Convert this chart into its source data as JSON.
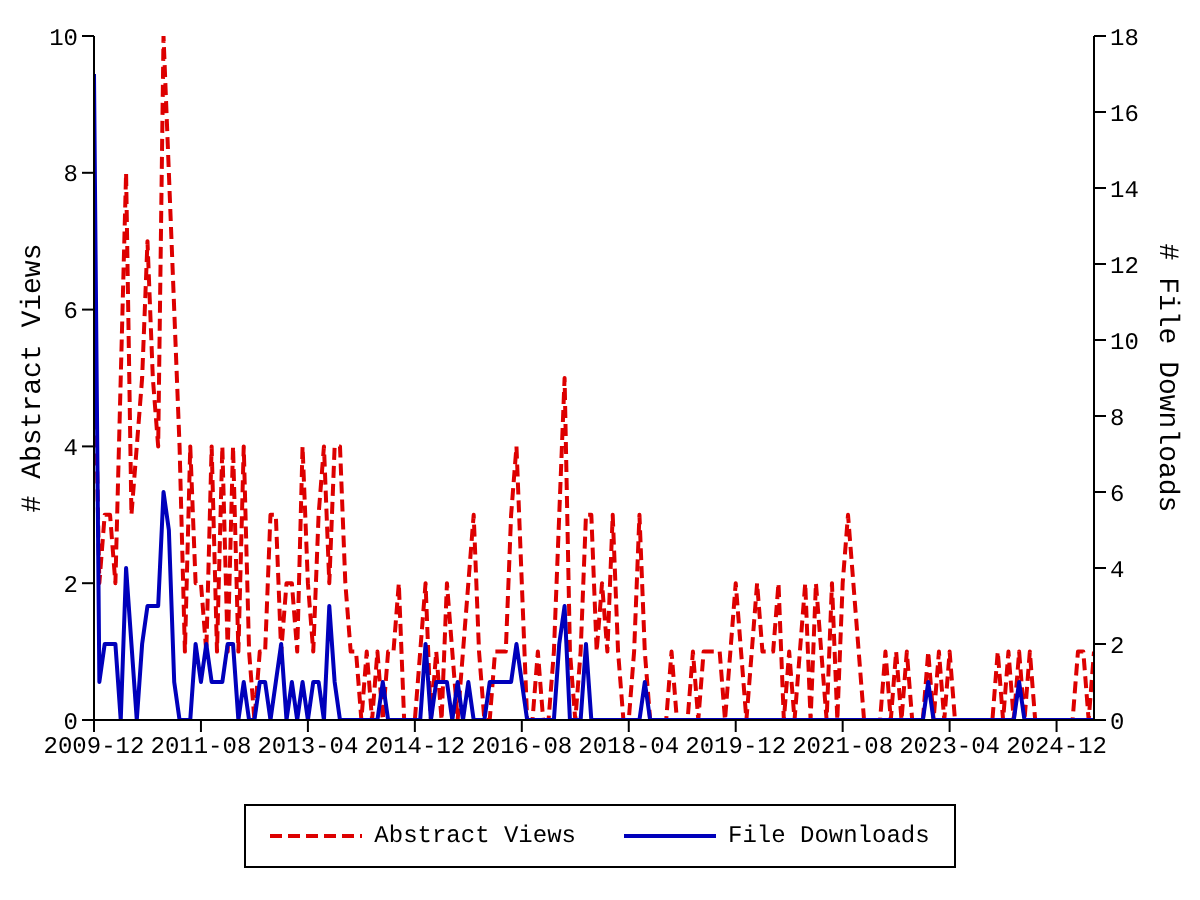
{
  "chart_data": {
    "type": "line",
    "ylabel": "# Abstract Views",
    "y2label": "# File Downloads",
    "x": [
      "2009-12",
      "2010-01",
      "2010-02",
      "2010-03",
      "2010-04",
      "2010-05",
      "2010-06",
      "2010-07",
      "2010-08",
      "2010-09",
      "2010-10",
      "2010-11",
      "2010-12",
      "2011-01",
      "2011-02",
      "2011-03",
      "2011-04",
      "2011-05",
      "2011-06",
      "2011-07",
      "2011-08",
      "2011-09",
      "2011-10",
      "2011-11",
      "2011-12",
      "2012-01",
      "2012-02",
      "2012-03",
      "2012-04",
      "2012-05",
      "2012-06",
      "2012-07",
      "2012-08",
      "2012-09",
      "2012-10",
      "2012-11",
      "2012-12",
      "2013-01",
      "2013-02",
      "2013-03",
      "2013-04",
      "2013-05",
      "2013-06",
      "2013-07",
      "2013-08",
      "2013-09",
      "2013-10",
      "2013-11",
      "2013-12",
      "2014-01",
      "2014-02",
      "2014-03",
      "2014-04",
      "2014-05",
      "2014-06",
      "2014-07",
      "2014-08",
      "2014-09",
      "2014-10",
      "2014-11",
      "2014-12",
      "2015-01",
      "2015-02",
      "2015-03",
      "2015-04",
      "2015-05",
      "2015-06",
      "2015-07",
      "2015-08",
      "2015-09",
      "2015-10",
      "2015-11",
      "2015-12",
      "2016-01",
      "2016-02",
      "2016-03",
      "2016-04",
      "2016-05",
      "2016-06",
      "2016-07",
      "2016-08",
      "2016-09",
      "2016-10",
      "2016-11",
      "2016-12",
      "2017-01",
      "2017-02",
      "2017-03",
      "2017-04",
      "2017-05",
      "2017-06",
      "2017-07",
      "2017-08",
      "2017-09",
      "2017-10",
      "2017-11",
      "2017-12",
      "2018-01",
      "2018-02",
      "2018-03",
      "2018-04",
      "2018-05",
      "2018-06",
      "2018-07",
      "2018-08",
      "2018-09",
      "2018-10",
      "2018-11",
      "2018-12",
      "2019-01",
      "2019-02",
      "2019-03",
      "2019-04",
      "2019-05",
      "2019-06",
      "2019-07",
      "2019-08",
      "2019-09",
      "2019-10",
      "2019-11",
      "2019-12",
      "2020-01",
      "2020-02",
      "2020-03",
      "2020-04",
      "2020-05",
      "2020-06",
      "2020-07",
      "2020-08",
      "2020-09",
      "2020-10",
      "2020-11",
      "2020-12",
      "2021-01",
      "2021-02",
      "2021-03",
      "2021-04",
      "2021-05",
      "2021-06",
      "2021-07",
      "2021-08",
      "2021-09",
      "2021-10",
      "2021-11",
      "2021-12",
      "2022-01",
      "2022-02",
      "2022-03",
      "2022-04",
      "2022-05",
      "2022-06",
      "2022-07",
      "2022-08",
      "2022-09",
      "2022-10",
      "2022-11",
      "2022-12",
      "2023-01",
      "2023-02",
      "2023-03",
      "2023-04",
      "2023-05",
      "2023-06",
      "2023-07",
      "2023-08",
      "2023-09",
      "2023-10",
      "2023-11",
      "2023-12",
      "2024-01",
      "2024-02",
      "2024-03",
      "2024-04",
      "2024-05",
      "2024-06",
      "2024-07",
      "2024-08",
      "2024-09",
      "2024-10",
      "2024-11",
      "2024-12",
      "2025-01",
      "2025-02",
      "2025-03",
      "2025-04",
      "2025-05",
      "2025-06",
      "2025-07"
    ],
    "series": [
      {
        "name": "Abstract Views",
        "color": "#dd0000",
        "line_style": "dashed",
        "values": [
          6,
          2,
          3,
          3,
          2,
          5,
          8,
          3,
          4,
          5,
          7,
          5,
          4,
          10,
          8,
          6,
          4,
          1,
          4,
          2,
          2,
          1,
          4,
          1,
          4,
          1,
          4,
          1,
          4,
          1,
          0,
          1,
          1,
          3,
          3,
          1,
          2,
          2,
          1,
          4,
          2,
          1,
          3,
          4,
          2,
          4,
          4,
          2,
          1,
          1,
          0,
          1,
          0,
          1,
          0,
          1,
          1,
          2,
          0,
          0,
          0,
          1,
          2,
          0,
          1,
          0,
          2,
          1,
          0,
          1,
          2,
          3,
          1,
          0,
          0,
          1,
          1,
          1,
          3,
          4,
          2,
          0,
          0,
          1,
          0,
          0,
          1,
          3,
          5,
          1,
          0,
          1,
          3,
          3,
          1,
          2,
          1,
          3,
          1,
          0,
          0,
          1,
          3,
          1,
          0,
          0,
          0,
          0,
          1,
          0,
          0,
          0,
          1,
          0,
          1,
          1,
          1,
          1,
          0,
          1,
          2,
          1,
          0,
          1,
          2,
          1,
          1,
          1,
          2,
          0,
          1,
          0,
          1,
          2,
          0,
          2,
          1,
          0,
          2,
          0,
          2,
          3,
          2,
          1,
          0,
          0,
          0,
          0,
          1,
          0,
          1,
          0,
          1,
          0,
          0,
          0,
          1,
          0,
          1,
          0,
          1,
          0,
          0,
          0,
          0,
          0,
          0,
          0,
          0,
          1,
          0,
          1,
          0,
          1,
          0,
          1,
          0,
          0,
          0,
          0,
          0,
          0,
          0,
          0,
          1,
          1,
          0,
          1
        ]
      },
      {
        "name": "File Downloads",
        "color": "#0000bb",
        "line_style": "solid",
        "axis": "y2",
        "values": [
          17,
          1,
          2,
          2,
          2,
          0,
          4,
          2,
          0,
          2,
          3,
          3,
          3,
          6,
          5,
          1,
          0,
          0,
          0,
          2,
          1,
          2,
          1,
          1,
          1,
          2,
          2,
          0,
          1,
          0,
          0,
          1,
          1,
          0,
          1,
          2,
          0,
          1,
          0,
          1,
          0,
          1,
          1,
          0,
          3,
          1,
          0,
          0,
          0,
          0,
          0,
          0,
          0,
          0,
          1,
          0,
          0,
          0,
          0,
          0,
          0,
          0,
          2,
          0,
          1,
          1,
          1,
          0,
          1,
          0,
          1,
          0,
          0,
          0,
          1,
          1,
          1,
          1,
          1,
          2,
          1,
          0,
          0,
          0,
          0,
          0,
          0,
          2,
          3,
          0,
          0,
          0,
          2,
          0,
          0,
          0,
          0,
          0,
          0,
          0,
          0,
          0,
          0,
          1,
          0,
          0,
          0,
          0,
          0,
          0,
          0,
          0,
          0,
          0,
          0,
          0,
          0,
          0,
          0,
          0,
          0,
          0,
          0,
          0,
          0,
          0,
          0,
          0,
          0,
          0,
          0,
          0,
          0,
          0,
          0,
          0,
          0,
          0,
          0,
          0,
          0,
          0,
          0,
          0,
          0,
          0,
          0,
          0,
          0,
          0,
          0,
          0,
          0,
          0,
          0,
          0,
          1,
          0,
          0,
          0,
          0,
          0,
          0,
          0,
          0,
          0,
          0,
          0,
          0,
          0,
          0,
          0,
          0,
          1,
          0,
          0,
          0,
          0,
          0,
          0,
          0,
          0,
          0,
          0,
          0,
          0,
          0,
          0
        ]
      }
    ],
    "xlim": [
      "2009-12",
      "2025-07"
    ],
    "xticks": [
      "2009-12",
      "2011-08",
      "2013-04",
      "2014-12",
      "2016-08",
      "2018-04",
      "2019-12",
      "2021-08",
      "2023-04",
      "2024-12"
    ],
    "ylim": [
      0,
      10
    ],
    "yticks": [
      0,
      2,
      4,
      6,
      8,
      10
    ],
    "y2lim": [
      0,
      18
    ],
    "y2ticks": [
      0,
      2,
      4,
      6,
      8,
      10,
      12,
      14,
      16,
      18
    ],
    "grid": false,
    "legend": "bottom"
  }
}
